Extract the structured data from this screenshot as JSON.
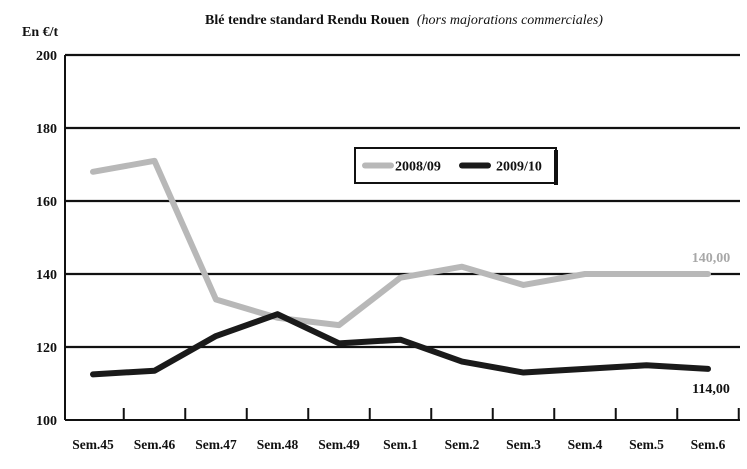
{
  "chart_data": {
    "type": "line",
    "title": "Blé tendre standard Rendu Rouen",
    "subtitle": "(hors majorations commerciales)",
    "ylabel": "En €/t",
    "xlabel": "",
    "ylim": [
      100,
      200
    ],
    "yticks": [
      100,
      120,
      140,
      160,
      180,
      200
    ],
    "grid": true,
    "legend_position": "top-center",
    "categories": [
      "Sem.45",
      "Sem.46",
      "Sem.47",
      "Sem.48",
      "Sem.49",
      "Sem.1",
      "Sem.2",
      "Sem.3",
      "Sem.4",
      "Sem.5",
      "Sem.6"
    ],
    "series": [
      {
        "name": "2008/09",
        "color": "#b8b8b8",
        "values": [
          168,
          171,
          133,
          128,
          126,
          139,
          142,
          137,
          140,
          140,
          140
        ],
        "end_label": "140,00"
      },
      {
        "name": "2009/10",
        "color": "#1a1a1a",
        "values": [
          112.5,
          113.5,
          123,
          129,
          121,
          122,
          116,
          113,
          114,
          115,
          114
        ],
        "end_label": "114,00"
      }
    ]
  }
}
